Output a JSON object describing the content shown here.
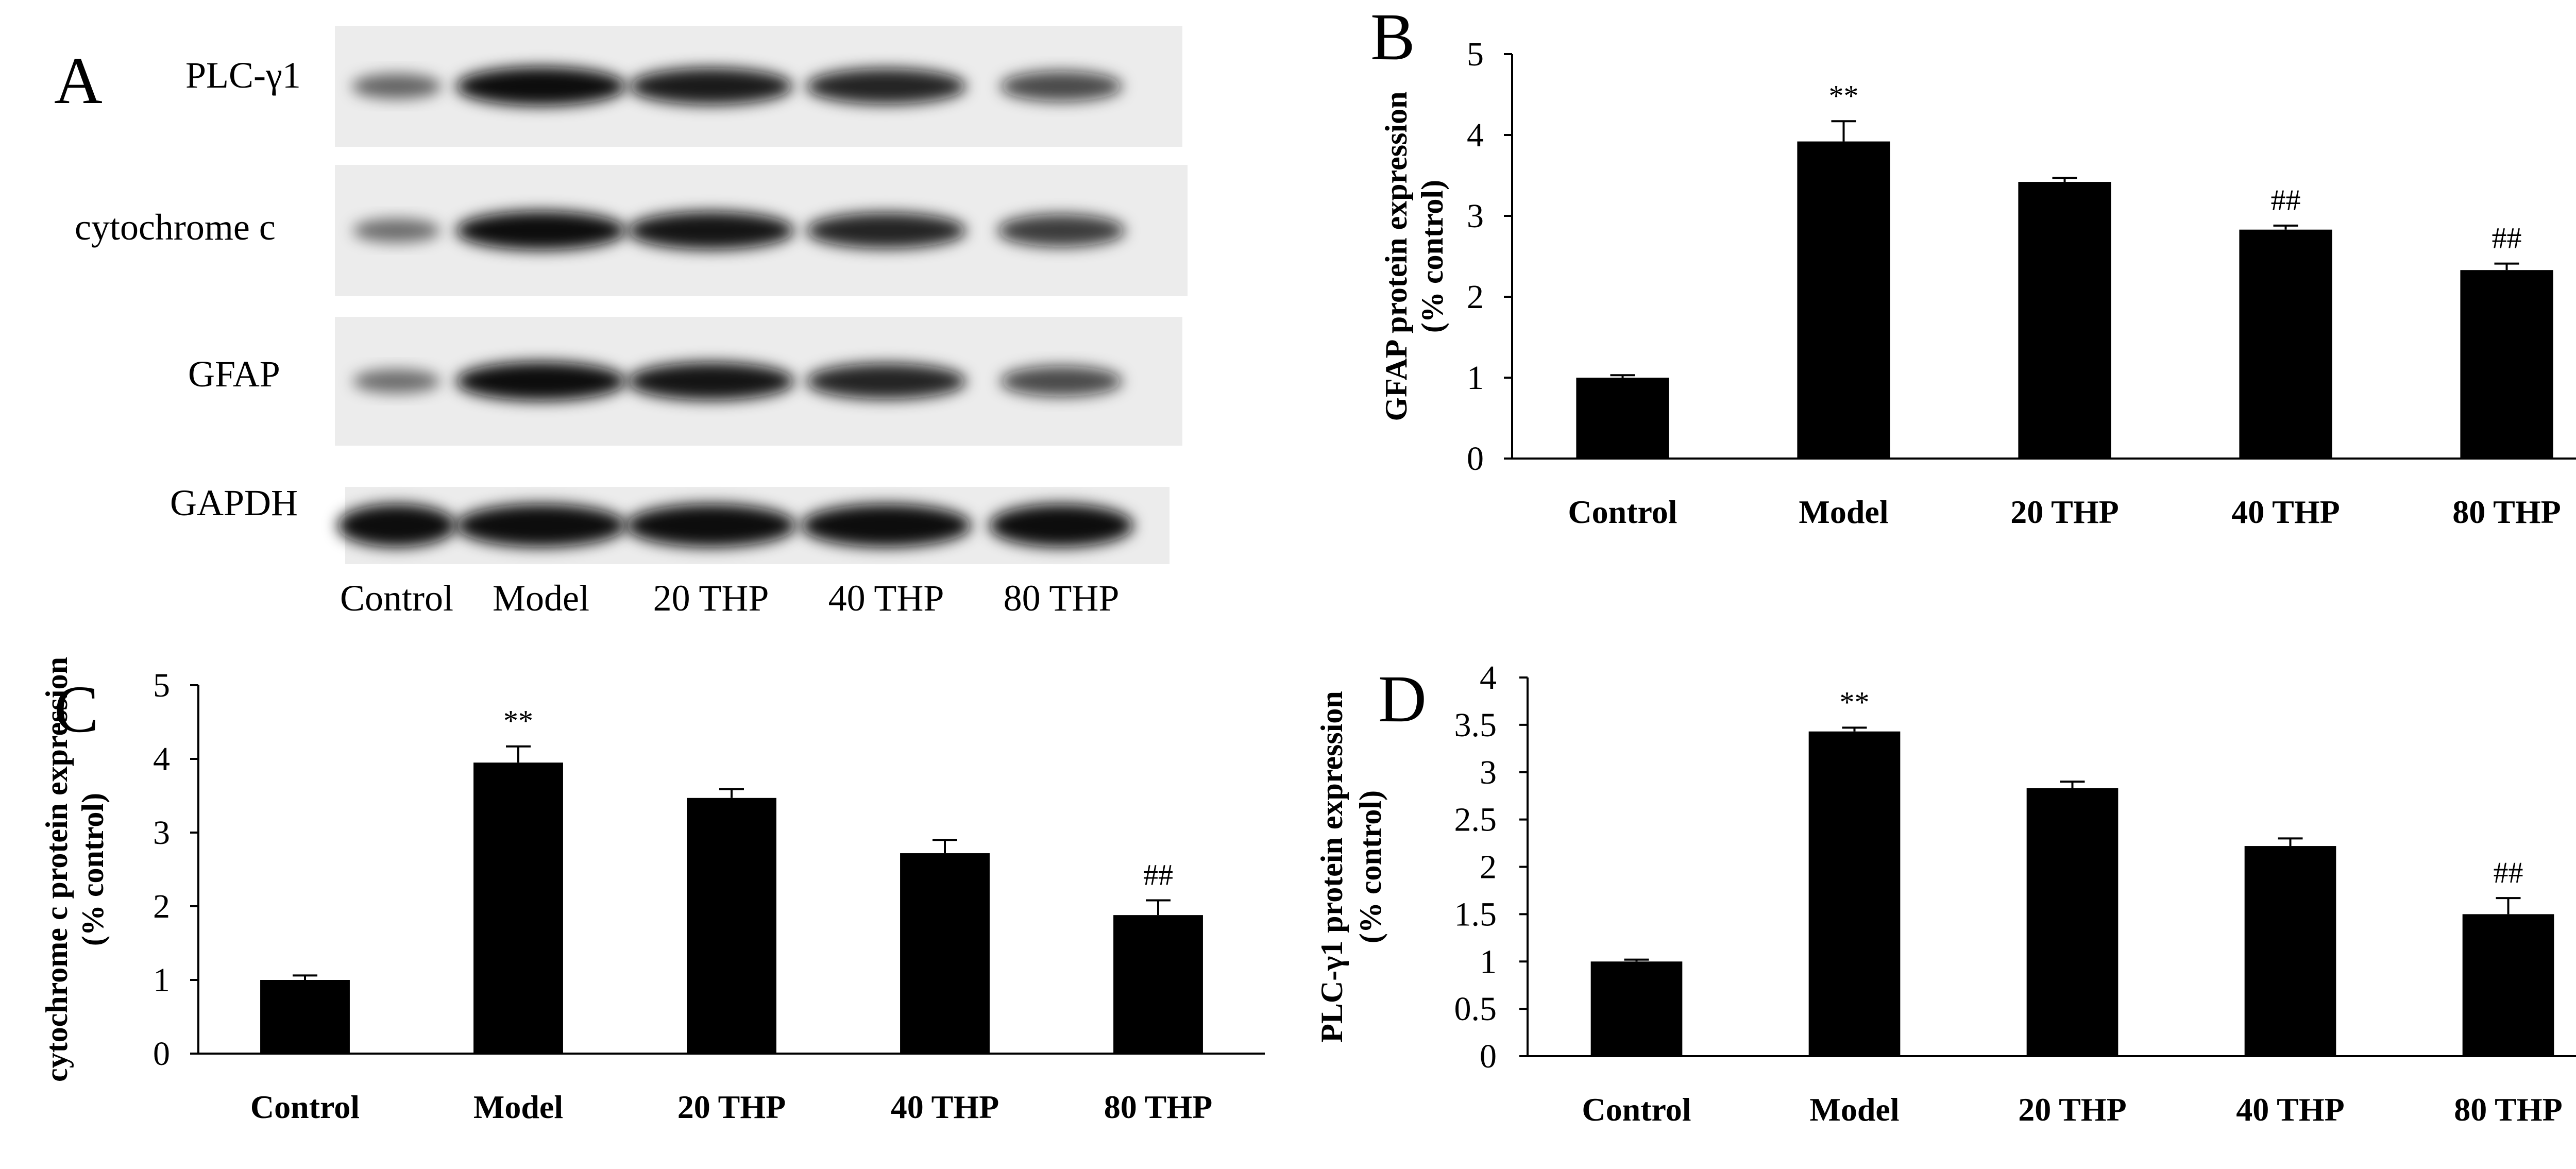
{
  "blot": {
    "letter": "A",
    "bands": [
      {
        "label": "PLC-γ1",
        "intensities": [
          0.35,
          1.0,
          0.9,
          0.85,
          0.6
        ]
      },
      {
        "label": "cytochrome c",
        "intensities": [
          0.3,
          1.0,
          0.95,
          0.85,
          0.7
        ]
      },
      {
        "label": "GFAP",
        "intensities": [
          0.3,
          1.0,
          0.95,
          0.85,
          0.6
        ]
      },
      {
        "label": "GAPDH",
        "intensities": [
          1.0,
          1.0,
          1.0,
          1.0,
          1.0
        ]
      }
    ],
    "lanes": [
      "Control",
      "Model",
      "20 THP",
      "40 THP",
      "80 THP"
    ]
  },
  "chart_data": [
    {
      "panel": "B",
      "type": "bar",
      "categories": [
        "Control",
        "Model",
        "20 THP",
        "40 THP",
        "80 THP"
      ],
      "values": [
        1.0,
        3.92,
        3.42,
        2.83,
        2.33
      ],
      "errors": [
        0.03,
        0.25,
        0.05,
        0.05,
        0.08
      ],
      "annotations": [
        "",
        "**",
        "",
        "##",
        "##"
      ],
      "ylabel_lines": [
        "GFAP protein expression",
        "(% control)"
      ],
      "xlabel": "",
      "ylim": [
        0,
        5
      ],
      "yticks": [
        "0",
        "1",
        "2",
        "3",
        "4",
        "5"
      ],
      "ytick_values": [
        0,
        1,
        2,
        3,
        4,
        5
      ]
    },
    {
      "panel": "C",
      "type": "bar",
      "categories": [
        "Control",
        "Model",
        "20 THP",
        "40 THP",
        "80 THP"
      ],
      "values": [
        1.0,
        3.95,
        3.47,
        2.72,
        1.88
      ],
      "errors": [
        0.06,
        0.22,
        0.12,
        0.18,
        0.2
      ],
      "annotations": [
        "",
        "**",
        "",
        "",
        "##"
      ],
      "ylabel_lines": [
        "cytochrome c protein expression",
        "(% control)"
      ],
      "xlabel": "",
      "ylim": [
        0,
        5
      ],
      "yticks": [
        "0",
        "1",
        "2",
        "3",
        "4",
        "5"
      ],
      "ytick_values": [
        0,
        1,
        2,
        3,
        4,
        5
      ]
    },
    {
      "panel": "D",
      "type": "bar",
      "categories": [
        "Control",
        "Model",
        "20 THP",
        "40 THP",
        "80 THP"
      ],
      "values": [
        1.0,
        3.43,
        2.83,
        2.22,
        1.5
      ],
      "errors": [
        0.02,
        0.04,
        0.07,
        0.08,
        0.17
      ],
      "annotations": [
        "",
        "**",
        "",
        "",
        "##"
      ],
      "ylabel_lines": [
        "PLC-γ1 protein expression",
        "(% control)"
      ],
      "xlabel": "",
      "ylim": [
        0,
        4
      ],
      "yticks": [
        "0",
        "0.5",
        "1",
        "1.5",
        "2",
        "2.5",
        "3",
        "3.5",
        "4"
      ],
      "ytick_values": [
        0,
        0.5,
        1,
        1.5,
        2,
        2.5,
        3,
        3.5,
        4
      ]
    }
  ],
  "style": {
    "bar_color": "#000000",
    "axis_color": "#000000",
    "blot_background": "#ececec",
    "band_color": "#0a0a0a"
  }
}
